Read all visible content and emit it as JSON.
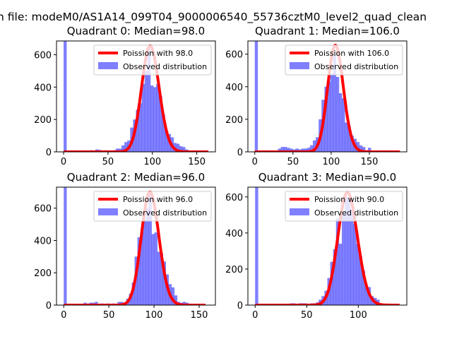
{
  "chart_data": {
    "type": "bar",
    "suptitle": "n file: modeM0/AS1A14_099T04_9000006540_55736cztM0_level2_quad_clean",
    "colors": {
      "hist": "#0000ff",
      "hist_alpha": 0.5,
      "curve": "#ff0000"
    },
    "legend_position": "top-right",
    "panels": [
      {
        "title": "Quadrant 0: Median=98.0",
        "lambda": 98.0,
        "curve_peak": 655,
        "legend": [
          "Poission with 98.0",
          "Observed distribution"
        ],
        "xlim": [
          -8,
          171
        ],
        "ylim": [
          0,
          685
        ],
        "xticks": [
          0,
          50,
          100,
          150
        ],
        "yticks": [
          0,
          200,
          400,
          600
        ],
        "bin_start": 0,
        "bin_end": 163,
        "counts": [
          2000,
          0,
          0,
          0,
          0,
          0,
          0,
          0,
          0,
          10,
          5,
          15,
          12,
          5,
          10,
          5,
          0,
          10,
          20,
          20,
          40,
          60,
          70,
          150,
          200,
          260,
          300,
          420,
          500,
          640,
          410,
          400,
          420,
          345,
          230,
          130,
          110,
          90,
          55,
          50,
          35,
          30,
          15,
          5,
          0,
          0,
          0,
          0,
          0,
          0
        ]
      },
      {
        "title": "Quadrant 1: Median=106.0",
        "lambda": 106.0,
        "curve_peak": 655,
        "legend": [
          "Poission with 106.0",
          "Observed distribution"
        ],
        "xlim": [
          -9,
          199
        ],
        "ylim": [
          0,
          681
        ],
        "xticks": [
          0,
          50,
          100,
          150
        ],
        "yticks": [
          0,
          200,
          400,
          600
        ],
        "bin_start": 0,
        "bin_end": 190,
        "counts": [
          2000,
          0,
          0,
          0,
          0,
          0,
          0,
          0,
          20,
          30,
          30,
          25,
          20,
          15,
          20,
          15,
          20,
          20,
          25,
          40,
          70,
          90,
          200,
          320,
          400,
          430,
          480,
          600,
          460,
          360,
          330,
          180,
          160,
          100,
          80,
          60,
          40,
          30,
          10,
          25,
          5,
          0,
          0,
          0,
          0,
          0,
          0,
          0,
          0,
          0
        ]
      },
      {
        "title": "Quadrant 2: Median=96.0",
        "lambda": 96.0,
        "curve_peak": 700,
        "legend": [
          "Poission with 96.0",
          "Observed distribution"
        ],
        "xlim": [
          -8,
          168
        ],
        "ylim": [
          0,
          730
        ],
        "xticks": [
          0,
          50,
          100,
          150
        ],
        "yticks": [
          0,
          200,
          400,
          600
        ],
        "bin_start": 0,
        "bin_end": 157,
        "counts": [
          2000,
          0,
          0,
          0,
          0,
          0,
          0,
          15,
          10,
          15,
          15,
          20,
          5,
          10,
          5,
          10,
          5,
          10,
          5,
          20,
          20,
          15,
          40,
          70,
          140,
          300,
          420,
          450,
          530,
          600,
          700,
          440,
          450,
          330,
          320,
          270,
          190,
          130,
          110,
          60,
          20,
          15,
          20,
          15,
          5,
          0,
          0,
          0,
          0,
          0
        ]
      },
      {
        "title": "Quadrant 3: Median=90.0",
        "lambda": 90.0,
        "curve_peak": 625,
        "legend": [
          "Poission with 90.0",
          "Observed distribution"
        ],
        "xlim": [
          -7,
          147
        ],
        "ylim": [
          0,
          654
        ],
        "xticks": [
          0,
          50,
          100
        ],
        "yticks": [
          0,
          200,
          400,
          600
        ],
        "bin_start": 0,
        "bin_end": 140,
        "counts": [
          2000,
          0,
          0,
          0,
          0,
          0,
          0,
          0,
          0,
          0,
          0,
          0,
          10,
          10,
          0,
          10,
          10,
          10,
          5,
          10,
          10,
          15,
          30,
          50,
          80,
          150,
          240,
          310,
          480,
          340,
          510,
          600,
          600,
          530,
          450,
          340,
          270,
          190,
          100,
          100,
          50,
          40,
          30,
          10,
          0,
          0,
          0,
          0,
          0,
          0
        ]
      }
    ]
  }
}
